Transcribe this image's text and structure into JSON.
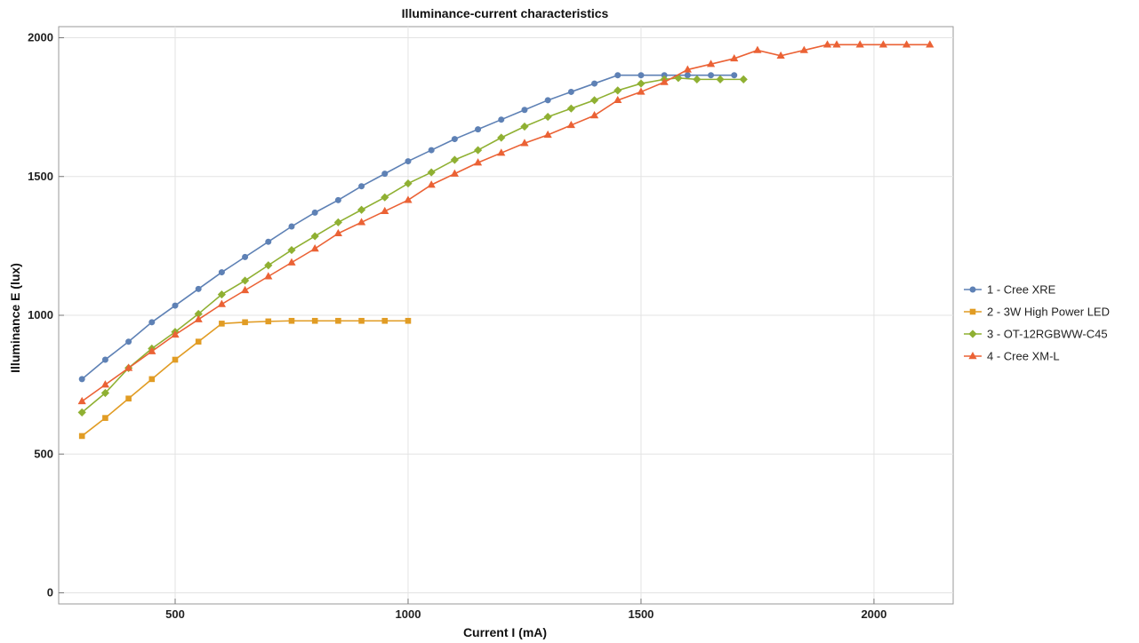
{
  "chart_data": {
    "type": "line",
    "title": "Illuminance-current characteristics",
    "xlabel": "Current I (mA)",
    "ylabel": "Illuminance E (lux)",
    "xlim": [
      250,
      2170
    ],
    "ylim": [
      -40,
      2040
    ],
    "xticks": [
      500,
      1000,
      1500,
      2000
    ],
    "yticks": [
      0,
      500,
      1000,
      1500,
      2000
    ],
    "grid": true,
    "legend_position": "right",
    "series": [
      {
        "name": "1 - Cree XRE",
        "color": "#5e81b5",
        "marker": "circle",
        "x": [
          300,
          350,
          400,
          450,
          500,
          550,
          600,
          650,
          700,
          750,
          800,
          850,
          900,
          950,
          1000,
          1050,
          1100,
          1150,
          1200,
          1250,
          1300,
          1350,
          1400,
          1450,
          1500,
          1550,
          1600,
          1650,
          1700
        ],
        "y": [
          770,
          840,
          905,
          975,
          1035,
          1095,
          1155,
          1210,
          1265,
          1320,
          1370,
          1415,
          1465,
          1510,
          1555,
          1595,
          1635,
          1670,
          1705,
          1740,
          1775,
          1805,
          1835,
          1865,
          1865,
          1865,
          1865,
          1865,
          1865
        ]
      },
      {
        "name": "2 - 3W High Power LED",
        "color": "#e19c24",
        "marker": "square",
        "x": [
          300,
          350,
          400,
          450,
          500,
          550,
          600,
          650,
          700,
          750,
          800,
          850,
          900,
          950,
          1000
        ],
        "y": [
          565,
          630,
          700,
          770,
          840,
          905,
          970,
          975,
          978,
          980,
          980,
          980,
          980,
          980,
          980
        ]
      },
      {
        "name": "3 - OT-12RGBWW-C45",
        "color": "#8fb032",
        "marker": "diamond",
        "x": [
          300,
          350,
          400,
          450,
          500,
          550,
          600,
          650,
          700,
          750,
          800,
          850,
          900,
          950,
          1000,
          1050,
          1100,
          1150,
          1200,
          1250,
          1300,
          1350,
          1400,
          1450,
          1500,
          1550,
          1580,
          1620,
          1670,
          1720
        ],
        "y": [
          650,
          720,
          810,
          880,
          940,
          1005,
          1075,
          1125,
          1180,
          1235,
          1285,
          1335,
          1380,
          1425,
          1475,
          1515,
          1560,
          1595,
          1640,
          1680,
          1715,
          1745,
          1775,
          1810,
          1835,
          1850,
          1855,
          1850,
          1850,
          1850
        ]
      },
      {
        "name": "4 - Cree XM-L",
        "color": "#eb6235",
        "marker": "triangle",
        "x": [
          300,
          350,
          400,
          450,
          500,
          550,
          600,
          650,
          700,
          750,
          800,
          850,
          900,
          950,
          1000,
          1050,
          1100,
          1150,
          1200,
          1250,
          1300,
          1350,
          1400,
          1450,
          1500,
          1550,
          1600,
          1650,
          1700,
          1750,
          1800,
          1850,
          1900,
          1920,
          1970,
          2020,
          2070,
          2120
        ],
        "y": [
          690,
          750,
          810,
          870,
          930,
          985,
          1040,
          1090,
          1140,
          1190,
          1240,
          1295,
          1335,
          1375,
          1415,
          1470,
          1510,
          1550,
          1585,
          1620,
          1650,
          1685,
          1720,
          1775,
          1805,
          1840,
          1885,
          1905,
          1925,
          1955,
          1935,
          1955,
          1975,
          1975,
          1975,
          1975,
          1975,
          1975
        ]
      }
    ]
  }
}
